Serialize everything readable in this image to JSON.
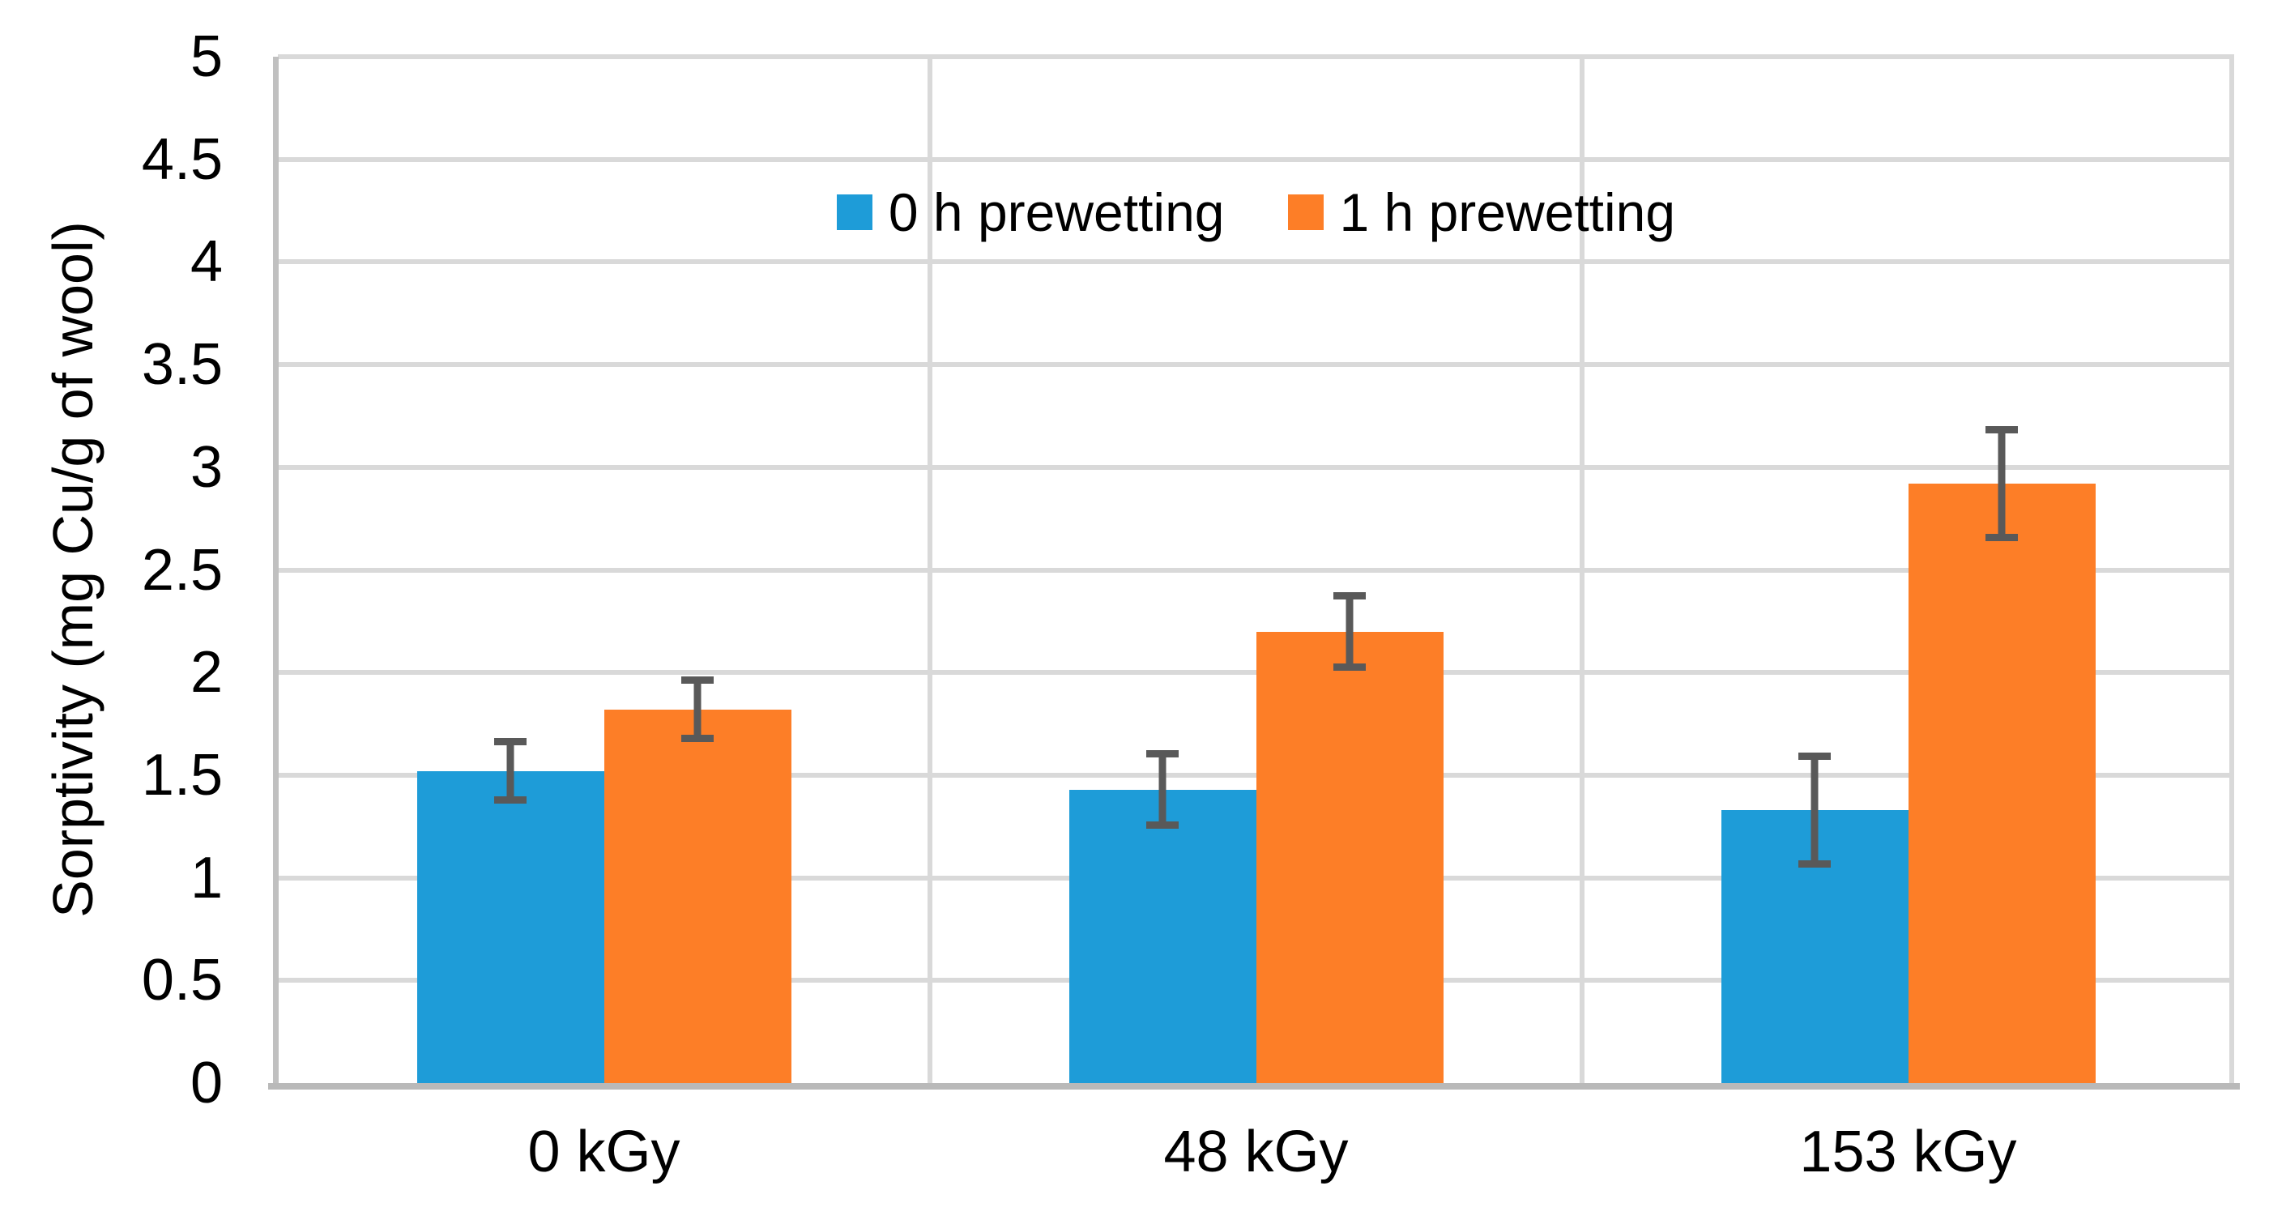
{
  "chart_data": {
    "type": "bar",
    "title": "",
    "categories": [
      "0 kGy",
      "48 kGy",
      "153 kGy"
    ],
    "series": [
      {
        "name": "0 h prewetting",
        "color": "#1E9CD8",
        "values": [
          1.52,
          1.43,
          1.33
        ],
        "errors": [
          0.16,
          0.19,
          0.28
        ]
      },
      {
        "name": "1 h prewetting",
        "color": "#FD7E27",
        "values": [
          1.82,
          2.2,
          2.92
        ],
        "errors": [
          0.16,
          0.19,
          0.28
        ]
      }
    ],
    "xlabel": "",
    "ylabel": "Sorptivity (mg Cu/g of wool)",
    "ylim": [
      0,
      5
    ],
    "yticks": [
      0,
      0.5,
      1,
      1.5,
      2,
      2.5,
      3,
      3.5,
      4,
      4.5,
      5
    ],
    "ytick_labels": [
      "0",
      "0.5",
      "1",
      "1.5",
      "2",
      "2.5",
      "3",
      "3.5",
      "4",
      "4.5",
      "5"
    ],
    "grid": true,
    "legend_position": "top-center",
    "error_bars": true,
    "colors": {
      "gridline": "#D9D9D9",
      "axis_line": "#BFBFBF",
      "error_bar": "#595959",
      "text": "#000000",
      "background": "#FFFFFF"
    }
  }
}
